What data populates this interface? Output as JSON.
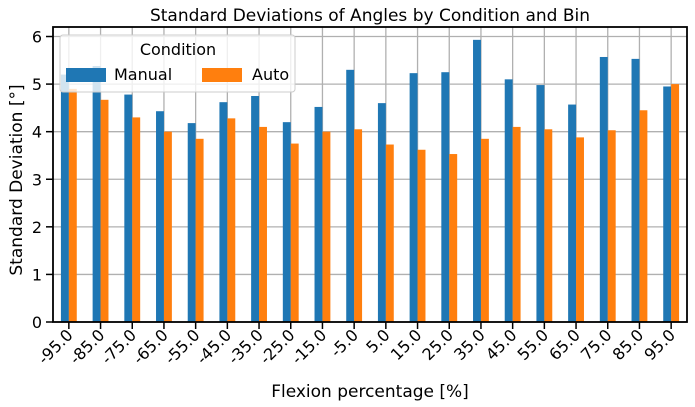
{
  "chart_data": {
    "type": "bar",
    "title": "Standard Deviations of Angles by Condition and Bin",
    "xlabel": "Flexion percentage [%]",
    "ylabel": "Standard Deviation [°]",
    "ylim": [
      0,
      6.2
    ],
    "yticks": [
      "0",
      "1",
      "2",
      "3",
      "4",
      "5",
      "6"
    ],
    "grid": true,
    "legend": {
      "title": "Condition",
      "placement": "upper-left"
    },
    "categories": [
      "-95.0",
      "-85.0",
      "-75.0",
      "-65.0",
      "-55.0",
      "-45.0",
      "-35.0",
      "-25.0",
      "-15.0",
      "-5.0",
      "5.0",
      "15.0",
      "25.0",
      "35.0",
      "45.0",
      "55.0",
      "65.0",
      "75.0",
      "85.0",
      "95.0"
    ],
    "series": [
      {
        "name": "Manual",
        "color": "#1f77b4",
        "values": [
          5.2,
          5.38,
          4.78,
          4.43,
          4.18,
          4.62,
          4.75,
          4.2,
          4.52,
          5.3,
          4.6,
          5.23,
          5.25,
          5.93,
          5.1,
          4.98,
          4.57,
          5.57,
          5.53,
          4.95
        ]
      },
      {
        "name": "Auto",
        "color": "#ff7f0e",
        "values": [
          4.9,
          4.67,
          4.3,
          4.0,
          3.85,
          4.28,
          4.1,
          3.75,
          4.0,
          4.05,
          3.73,
          3.62,
          3.53,
          3.85,
          4.1,
          4.05,
          3.88,
          4.03,
          4.45,
          5.0
        ]
      }
    ]
  }
}
